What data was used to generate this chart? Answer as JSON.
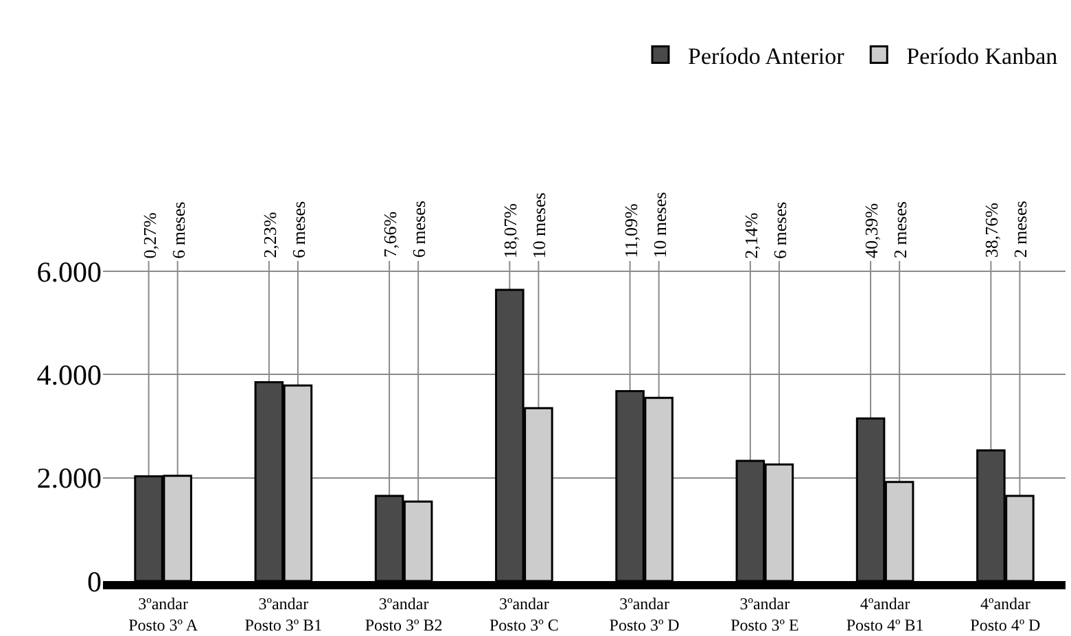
{
  "chart_data": {
    "type": "bar",
    "categories": [
      "3ºandar\nPosto 3º A",
      "3ºandar\nPosto 3º B1",
      "3ºandar\nPosto 3º B2",
      "3ºandar\nPosto 3º C",
      "3ºandar\nPosto 3º D",
      "3ºandar\nPosto 3º E",
      "4ºandar\nPosto 4º B1",
      "4ºandar\nPosto 4º D"
    ],
    "series": [
      {
        "name": "Período Anterior",
        "color": "#4a4a4a",
        "values": [
          2030,
          3850,
          1650,
          5640,
          3680,
          2330,
          3150,
          2530
        ]
      },
      {
        "name": "Período Kanban",
        "color": "#cccccc",
        "values": [
          2040,
          3790,
          1540,
          3350,
          3550,
          2260,
          1920,
          1650
        ]
      }
    ],
    "ylim": [
      0,
      6200
    ],
    "yticks": [
      {
        "value": 0,
        "label": "0"
      },
      {
        "value": 2000,
        "label": "2.000"
      },
      {
        "value": 4000,
        "label": "4.000"
      },
      {
        "value": 6000,
        "label": "6.000"
      }
    ],
    "grid": "y",
    "legend": "top right",
    "annotations": [
      {
        "text": "0,27%",
        "y": 2030
      },
      {
        "text": "6 meses",
        "y": 2040
      },
      {
        "text": "2,23%",
        "y": 3850
      },
      {
        "text": "6 meses",
        "y": 3790
      },
      {
        "text": "7,66%",
        "y": 1650
      },
      {
        "text": "6 meses",
        "y": 1540
      },
      {
        "text": "18,07%",
        "y": 5640
      },
      {
        "text": "10 meses",
        "y": 3350
      },
      {
        "text": "11,09%",
        "y": 3680
      },
      {
        "text": "10 meses",
        "y": 3550
      },
      {
        "text": "2,14%",
        "y": 2330
      },
      {
        "text": "6 meses",
        "y": 2260
      },
      {
        "text": "40,39%",
        "y": 3150
      },
      {
        "text": "2 meses",
        "y": 1920
      },
      {
        "text": "38,76%",
        "y": 2530
      },
      {
        "text": "2 meses",
        "y": 1650
      }
    ]
  }
}
